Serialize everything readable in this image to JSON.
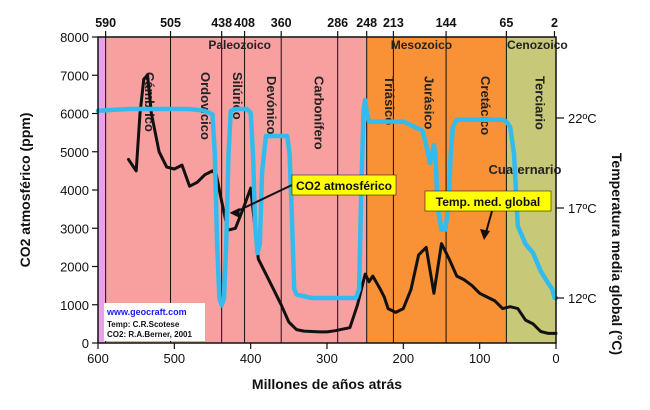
{
  "chart_data": {
    "type": "line",
    "xlabel": "Millones de años atrás",
    "ylabel": "CO2 atmosférico (ppm)",
    "y2label": "Temperatura media global (°C)",
    "xlim": [
      600,
      0
    ],
    "ylim": [
      0,
      8000
    ],
    "y2lim": [
      9.5,
      26.5
    ],
    "x_ticks": [
      "600",
      "500",
      "400",
      "300",
      "200",
      "100",
      "0"
    ],
    "y_ticks": [
      "0",
      "1000",
      "2000",
      "3000",
      "4000",
      "5000",
      "6000",
      "7000",
      "8000"
    ],
    "y2_ticks": [
      {
        "value": 12,
        "label": "12ºC"
      },
      {
        "value": 17,
        "label": "17ºC"
      },
      {
        "value": 22,
        "label": "22ºC"
      }
    ],
    "top_ticks": [
      "590",
      "505",
      "438",
      "408",
      "360",
      "286",
      "248",
      "213",
      "144",
      "65",
      "2"
    ],
    "grid": false,
    "eras": [
      {
        "name": "Paleozoico",
        "from": 590,
        "to": 248,
        "color": "#f8a0a0"
      },
      {
        "name": "Mesozoico",
        "from": 248,
        "to": 65,
        "color": "#f99136"
      },
      {
        "name": "Cenozoico",
        "from": 65,
        "to": 2,
        "color": "#c7c878"
      }
    ],
    "precambrian_strip": {
      "from": 600,
      "to": 590,
      "color": "#e7a2e9"
    },
    "periods": [
      {
        "name": "Cámbrico",
        "from": 590,
        "to": 505
      },
      {
        "name": "Ordovícico",
        "from": 505,
        "to": 438
      },
      {
        "name": "Silúrico",
        "from": 438,
        "to": 408
      },
      {
        "name": "Devónico",
        "from": 408,
        "to": 360
      },
      {
        "name": "Carbonífero",
        "from": 360,
        "to": 286
      },
      {
        "name": "Triásico",
        "from": 248,
        "to": 213
      },
      {
        "name": "Jurásico",
        "from": 213,
        "to": 144
      },
      {
        "name": "Cretácico",
        "from": 144,
        "to": 65
      },
      {
        "name": "Terciario",
        "from": 65,
        "to": 2
      }
    ],
    "boundaries": [
      505,
      438,
      408,
      360,
      286,
      248,
      213,
      144,
      65
    ],
    "extra_label": "Cuaternario",
    "series": [
      {
        "name": "CO2 atmosférico",
        "axis": "left",
        "color": "#111111",
        "x": [
          560,
          550,
          545,
          540,
          535,
          530,
          520,
          510,
          500,
          490,
          480,
          470,
          460,
          450,
          445,
          440,
          430,
          420,
          410,
          400,
          390,
          380,
          370,
          360,
          350,
          340,
          330,
          320,
          310,
          300,
          290,
          280,
          270,
          260,
          250,
          245,
          240,
          230,
          225,
          220,
          210,
          200,
          190,
          180,
          175,
          170,
          160,
          150,
          145,
          140,
          130,
          120,
          110,
          100,
          90,
          80,
          70,
          60,
          50,
          40,
          30,
          20,
          10,
          0
        ],
        "values": [
          4800,
          4500,
          6000,
          6900,
          7000,
          6000,
          5000,
          4600,
          4550,
          4650,
          4100,
          4200,
          4400,
          4500,
          4400,
          3900,
          2950,
          3000,
          3500,
          4050,
          2200,
          1800,
          1400,
          1000,
          550,
          350,
          310,
          300,
          290,
          290,
          320,
          360,
          400,
          1000,
          1800,
          1600,
          1750,
          1400,
          1200,
          900,
          800,
          900,
          1400,
          2300,
          2400,
          2500,
          1300,
          2600,
          2400,
          2200,
          1750,
          1650,
          1500,
          1300,
          1200,
          1100,
          900,
          950,
          900,
          600,
          500,
          300,
          250,
          250
        ]
      },
      {
        "name": "Temp. med. global",
        "axis": "right",
        "color": "#33bbee",
        "x": [
          600,
          560,
          520,
          480,
          460,
          450,
          447,
          444,
          441,
          438,
          435,
          432,
          429,
          426,
          420,
          405,
          400,
          397,
          394,
          391,
          388,
          385,
          380,
          360,
          352,
          349,
          346,
          343,
          340,
          320,
          300,
          290,
          270,
          262,
          258,
          255,
          252,
          250,
          248,
          245,
          240,
          200,
          190,
          175,
          170,
          165,
          160,
          158,
          155,
          150,
          145,
          141,
          138,
          135,
          130,
          120,
          110,
          100,
          90,
          80,
          70,
          65,
          60,
          55,
          50,
          40,
          30,
          20,
          10,
          5,
          2,
          0
        ],
        "values": [
          22.4,
          22.5,
          22.5,
          22.5,
          22.4,
          22.2,
          20,
          15,
          12,
          11.6,
          12,
          15,
          20,
          22.4,
          22.5,
          22.5,
          22.3,
          20,
          16,
          14.5,
          15,
          19,
          21,
          21,
          21,
          20,
          16.5,
          12.5,
          12.2,
          12,
          12,
          12,
          12,
          12,
          12.5,
          18,
          22.5,
          23,
          22.3,
          21.8,
          21.8,
          21.8,
          21.6,
          21.3,
          20.5,
          19.5,
          20.5,
          20,
          17,
          15.8,
          15.8,
          17,
          20,
          21.5,
          21.9,
          21.9,
          21.9,
          21.9,
          21.9,
          21.9,
          21.9,
          21.8,
          21.5,
          20,
          16,
          15,
          14.5,
          13.5,
          12.8,
          12.5,
          12,
          12
        ]
      }
    ],
    "annotations": [
      {
        "text": "CO2 atmosférico",
        "box_color": "#ffff00",
        "target": [
          446,
          4500
        ]
      },
      {
        "text": "Temp. med. global",
        "box_color": "#ffff00",
        "target": [
          96,
          22
        ]
      }
    ],
    "credits": {
      "link": "www.geocraft.com",
      "lines": [
        "Temp: C.R.Scotese",
        "CO2: R.A.Berner, 2001"
      ]
    }
  }
}
